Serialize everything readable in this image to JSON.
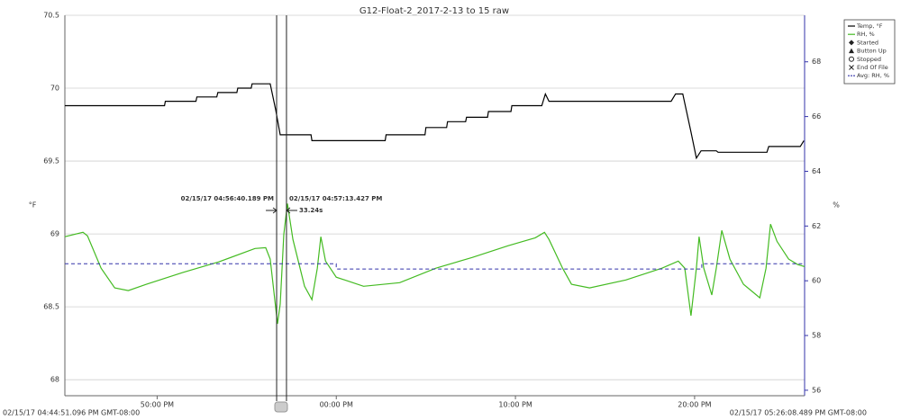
{
  "chart_data": {
    "type": "line",
    "title": "G12-Float-2_2017-2-13 to 15 raw",
    "y_label": "°F",
    "y2_label": "%",
    "xlim": [
      44.85,
      86.14
    ],
    "xticks": [
      {
        "value": 50,
        "label": "50:00 PM"
      },
      {
        "value": 60,
        "label": "00:00 PM"
      },
      {
        "value": 70,
        "label": "10:00 PM"
      },
      {
        "value": 80,
        "label": "20:00 PM"
      }
    ],
    "x_start_label": "02/15/17 04:44:51.096 PM GMT-08:00",
    "x_end_label": "02/15/17 05:26:08.489 PM GMT-08:00",
    "ylim": [
      67.89,
      70.5
    ],
    "yticks": [
      68,
      68.5,
      69,
      69.5,
      70,
      70.5
    ],
    "y2lim": [
      55.8,
      69.7
    ],
    "y2ticks": [
      56,
      58,
      60,
      62,
      64,
      66,
      68
    ],
    "grid": true,
    "series": [
      {
        "name": "Temp, °F",
        "color": "#000000",
        "dash": false,
        "x": [
          44.85,
          50.41,
          50.46,
          52.17,
          52.22,
          53.33,
          53.39,
          54.45,
          54.5,
          55.25,
          55.3,
          56.31,
          56.62,
          56.87,
          58.59,
          58.64,
          62.73,
          62.78,
          64.95,
          65.0,
          66.16,
          66.21,
          67.22,
          67.27,
          68.44,
          68.49,
          69.75,
          69.8,
          71.47,
          71.67,
          71.87,
          78.69,
          78.94,
          79.34,
          79.8,
          80.1,
          80.36,
          81.21,
          81.31,
          84.04,
          84.14,
          85.9,
          86.1
        ],
        "values": [
          69.88,
          69.88,
          69.91,
          69.91,
          69.94,
          69.94,
          69.97,
          69.97,
          70.0,
          70.0,
          70.03,
          70.03,
          69.85,
          69.68,
          69.68,
          69.64,
          69.64,
          69.68,
          69.68,
          69.73,
          69.73,
          69.77,
          69.77,
          69.8,
          69.8,
          69.84,
          69.84,
          69.88,
          69.88,
          69.96,
          69.91,
          69.91,
          69.96,
          69.96,
          69.7,
          69.52,
          69.57,
          69.57,
          69.56,
          69.56,
          69.6,
          69.6,
          69.64
        ]
      },
      {
        "name": "RH, %",
        "color": "#44bb22",
        "axis": "y2",
        "dash": false,
        "x": [
          44.85,
          45.86,
          46.11,
          46.87,
          47.63,
          48.39,
          49.4,
          51.42,
          53.44,
          55.46,
          56.06,
          56.31,
          56.72,
          56.87,
          57.07,
          57.27,
          57.58,
          58.23,
          58.64,
          58.94,
          59.14,
          59.4,
          60.0,
          61.52,
          63.54,
          65.56,
          67.58,
          69.6,
          71.11,
          71.62,
          71.87,
          72.63,
          73.13,
          74.14,
          76.16,
          78.18,
          79.09,
          79.45,
          79.8,
          80.1,
          80.25,
          80.51,
          80.96,
          81.21,
          81.52,
          81.97,
          82.73,
          83.64,
          83.99,
          84.24,
          84.6,
          85.25,
          85.76,
          86.14
        ],
        "values": [
          61.61,
          61.77,
          61.64,
          60.46,
          59.74,
          59.64,
          59.87,
          60.3,
          60.69,
          61.18,
          61.21,
          60.79,
          58.43,
          59.15,
          61.7,
          62.82,
          61.51,
          59.8,
          59.31,
          60.46,
          61.61,
          60.72,
          60.13,
          59.8,
          59.93,
          60.46,
          60.85,
          61.28,
          61.57,
          61.77,
          61.51,
          60.46,
          59.87,
          59.74,
          60.03,
          60.46,
          60.72,
          60.46,
          58.72,
          60.46,
          61.61,
          60.46,
          59.48,
          60.46,
          61.84,
          60.79,
          59.87,
          59.38,
          60.46,
          62.07,
          61.44,
          60.79,
          60.59,
          60.52
        ]
      },
      {
        "name": "Avg: RH, %",
        "color": "#3333aa",
        "axis": "y2",
        "dash": true,
        "x": [
          44.85,
          60.0,
          60.0,
          80.4,
          80.4,
          86.14
        ],
        "values": [
          60.62,
          60.62,
          60.43,
          60.43,
          60.62,
          60.62
        ]
      }
    ],
    "event_markers": [
      "Started",
      "Button Up",
      "Stopped",
      "End Of File"
    ],
    "cursors": [
      {
        "x": 56.67,
        "label": "02/15/17 04:56:40.189 PM"
      },
      {
        "x": 57.22,
        "label": "02/15/17 04:57:13.427 PM"
      }
    ],
    "cursor_delta": "33.24s"
  }
}
